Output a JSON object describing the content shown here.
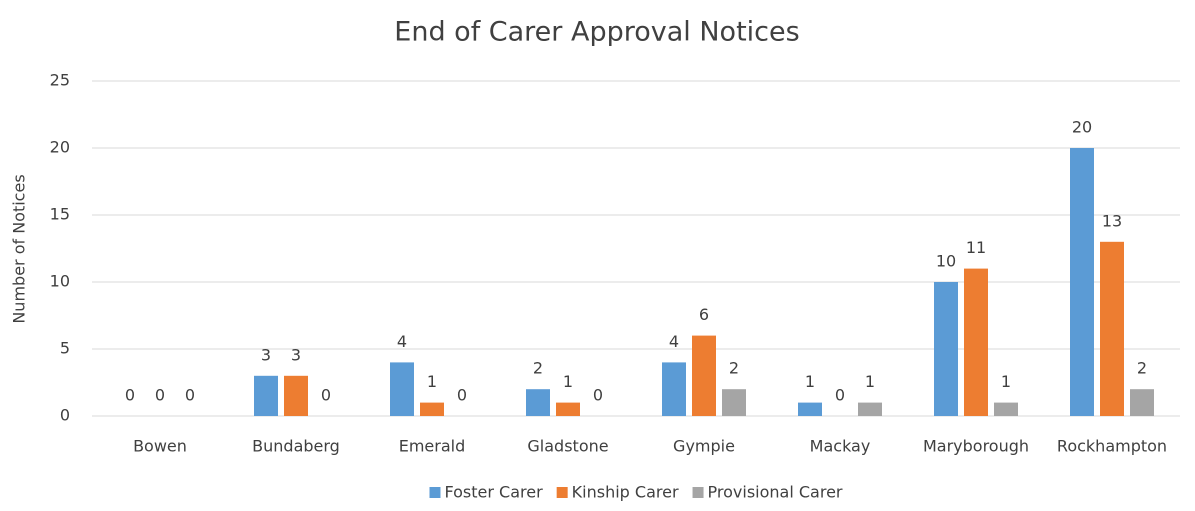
{
  "chart_data": {
    "type": "bar",
    "title": "End of Carer Approval Notices",
    "y_label": "Number of Notices",
    "categories": [
      "Bowen",
      "Bundaberg",
      "Emerald",
      "Gladstone",
      "Gympie",
      "Mackay",
      "Maryborough",
      "Rockhampton"
    ],
    "series": [
      {
        "name": "Foster Carer",
        "color": "#5b9bd5",
        "values": [
          0,
          3,
          4,
          2,
          4,
          1,
          10,
          20
        ]
      },
      {
        "name": "Kinship Carer",
        "color": "#ed7d31",
        "values": [
          0,
          3,
          1,
          1,
          6,
          0,
          11,
          13
        ]
      },
      {
        "name": "Provisional Carer",
        "color": "#a5a5a5",
        "values": [
          0,
          0,
          0,
          0,
          2,
          1,
          1,
          2
        ]
      }
    ],
    "ylim": [
      0,
      25
    ],
    "yticks": [
      0,
      5,
      10,
      15,
      20,
      25
    ],
    "grid": true,
    "legend": "bottom"
  }
}
